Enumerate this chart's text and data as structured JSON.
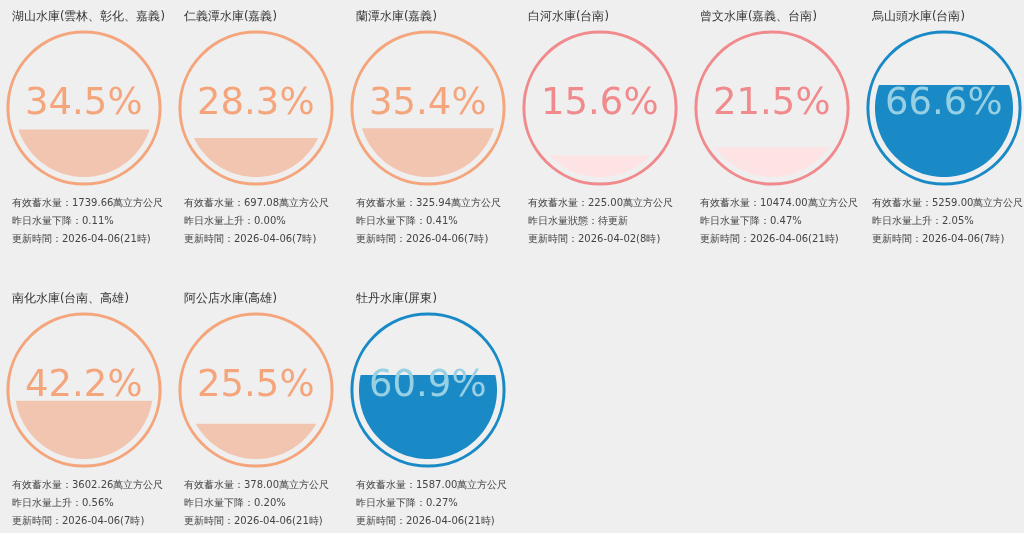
{
  "chart_data": [
    {
      "type": "other",
      "title": "湖山水庫(雲林、彰化、嘉義)",
      "values": [
        34.5
      ],
      "value_labels": [
        "34.5%"
      ],
      "color": "#f5a57c",
      "colors": [
        "#f2c5b0"
      ],
      "annotations": [
        "有效蓄水量：1739.66萬立方公尺",
        "昨日水量下降：0.11%",
        "更新時間：2026-04-06(21時)"
      ]
    },
    {
      "type": "other",
      "title": "仁義潭水庫(嘉義)",
      "values": [
        28.3
      ],
      "value_labels": [
        "28.3%"
      ],
      "color": "#f5a57c",
      "colors": [
        "#f2c5b0"
      ],
      "annotations": [
        "有效蓄水量：697.08萬立方公尺",
        "昨日水量上升：0.00%",
        "更新時間：2026-04-06(7時)"
      ]
    },
    {
      "type": "other",
      "title": "蘭潭水庫(嘉義)",
      "values": [
        35.4
      ],
      "value_labels": [
        "35.4%"
      ],
      "color": "#f5a57c",
      "colors": [
        "#f2c5b0"
      ],
      "annotations": [
        "有效蓄水量：325.94萬立方公尺",
        "昨日水量下降：0.41%",
        "更新時間：2026-04-06(7時)"
      ]
    },
    {
      "type": "other",
      "title": "白河水庫(台南)",
      "values": [
        15.6
      ],
      "value_labels": [
        "15.6%"
      ],
      "color": "#f08a8c",
      "colors": [
        "#fde3e3"
      ],
      "annotations": [
        "有效蓄水量：225.00萬立方公尺",
        "昨日水量狀態：待更新",
        "更新時間：2026-04-02(8時)"
      ]
    },
    {
      "type": "other",
      "title": "曾文水庫(嘉義、台南)",
      "values": [
        21.5
      ],
      "value_labels": [
        "21.5%"
      ],
      "color": "#f08a8c",
      "colors": [
        "#fde3e3"
      ],
      "annotations": [
        "有效蓄水量：10474.00萬立方公尺",
        "昨日水量下降：0.47%",
        "更新時間：2026-04-06(21時)"
      ]
    },
    {
      "type": "other",
      "title": "烏山頭水庫(台南)",
      "values": [
        66.6
      ],
      "value_labels": [
        "66.6%"
      ],
      "color": "#1a8ac6",
      "colors": [
        "#1a8ac6"
      ],
      "annotations": [
        "有效蓄水量：5259.00萬立方公尺",
        "昨日水量上升：2.05%",
        "更新時間：2026-04-06(7時)"
      ]
    },
    {
      "type": "other",
      "title": "南化水庫(台南、高雄)",
      "values": [
        42.2
      ],
      "value_labels": [
        "42.2%"
      ],
      "color": "#f5a57c",
      "colors": [
        "#f2c5b0"
      ],
      "annotations": [
        "有效蓄水量：3602.26萬立方公尺",
        "昨日水量上升：0.56%",
        "更新時間：2026-04-06(7時)"
      ]
    },
    {
      "type": "other",
      "title": "阿公店水庫(高雄)",
      "values": [
        25.5
      ],
      "value_labels": [
        "25.5%"
      ],
      "color": "#f5a57c",
      "colors": [
        "#f2c5b0"
      ],
      "annotations": [
        "有效蓄水量：378.00萬立方公尺",
        "昨日水量下降：0.20%",
        "更新時間：2026-04-06(21時)"
      ]
    },
    {
      "type": "other",
      "title": "牡丹水庫(屏東)",
      "values": [
        60.9
      ],
      "value_labels": [
        "60.9%"
      ],
      "color": "#1a8ac6",
      "colors": [
        "#1a8ac6"
      ],
      "annotations": [
        "有效蓄水量：1587.00萬立方公尺",
        "昨日水量下降：0.27%",
        "更新時間：2026-04-06(21時)"
      ]
    }
  ]
}
